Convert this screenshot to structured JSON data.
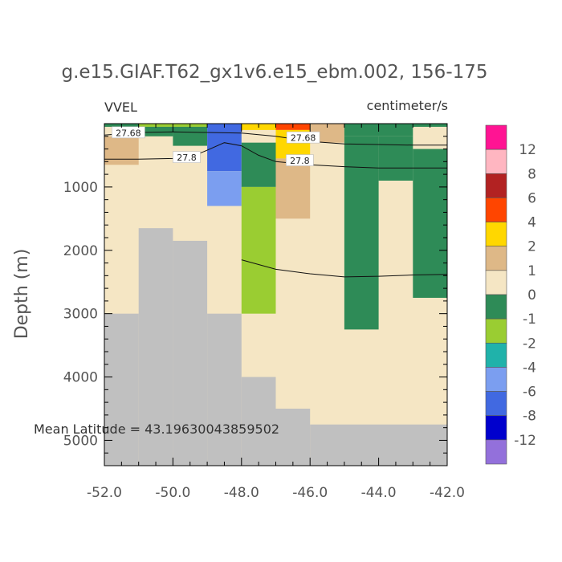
{
  "chart_data": {
    "type": "heatmap",
    "title": "g.e15.GIAF.T62_gx1v6.e15_ebm.002, 156-175",
    "variable": "VVEL",
    "units": "centimeter/s",
    "ylabel": "Depth (m)",
    "xlabel": "",
    "annotation": "Mean Latitude = 43.19630043859502",
    "xlim": [
      -52.0,
      -42.0
    ],
    "ylim": [
      0,
      5400
    ],
    "y_inverted": true,
    "x_ticks": [
      "-52.0",
      "-50.0",
      "-48.0",
      "-46.0",
      "-44.0",
      "-42.0"
    ],
    "x_tick_values": [
      -52,
      -50,
      -48,
      -46,
      -44,
      -42
    ],
    "y_ticks": [
      "1000",
      "2000",
      "3000",
      "4000",
      "5000"
    ],
    "y_tick_values": [
      1000,
      2000,
      3000,
      4000,
      5000
    ],
    "colorbar": {
      "labels": [
        "12",
        "8",
        "6",
        "4",
        "2",
        "1",
        "0",
        "-1",
        "-2",
        "-4",
        "-6",
        "-8",
        "-12"
      ],
      "colors": [
        "#ff1493",
        "#ffb6c1",
        "#b22222",
        "#ff4500",
        "#ffd700",
        "#deb887",
        "#f5e6c4",
        "#2e8b57",
        "#9acd32",
        "#20b2aa",
        "#7b9ef0",
        "#4169e1",
        "#0000cd",
        "#9370db"
      ]
    },
    "background_color": "#f5e6c4",
    "land_color": "#c0c0c0",
    "cells": [
      {
        "x0": -52.0,
        "x1": -51.0,
        "y0": 0,
        "y1": 50,
        "c": "#2e8b57"
      },
      {
        "x0": -51.0,
        "x1": -49.0,
        "y0": 0,
        "y1": 50,
        "c": "#9acd32"
      },
      {
        "x0": -52.0,
        "x1": -51.0,
        "y0": 200,
        "y1": 650,
        "c": "#deb887"
      },
      {
        "x0": -51.0,
        "x1": -50.0,
        "y0": 50,
        "y1": 200,
        "c": "#2e8b57"
      },
      {
        "x0": -50.0,
        "x1": -49.0,
        "y0": 50,
        "y1": 350,
        "c": "#2e8b57"
      },
      {
        "x0": -49.0,
        "x1": -48.0,
        "y0": 0,
        "y1": 750,
        "c": "#4169e1"
      },
      {
        "x0": -49.0,
        "x1": -48.0,
        "y0": 750,
        "y1": 1300,
        "c": "#7b9ef0"
      },
      {
        "x0": -48.0,
        "x1": -47.0,
        "y0": 0,
        "y1": 100,
        "c": "#ffd700"
      },
      {
        "x0": -48.0,
        "x1": -47.0,
        "y0": 300,
        "y1": 1000,
        "c": "#2e8b57"
      },
      {
        "x0": -48.0,
        "x1": -47.0,
        "y0": 1000,
        "y1": 3000,
        "c": "#9acd32"
      },
      {
        "x0": -47.0,
        "x1": -46.0,
        "y0": 0,
        "y1": 100,
        "c": "#ff4500"
      },
      {
        "x0": -47.0,
        "x1": -46.0,
        "y0": 100,
        "y1": 550,
        "c": "#ffd700"
      },
      {
        "x0": -47.0,
        "x1": -46.0,
        "y0": 550,
        "y1": 1500,
        "c": "#deb887"
      },
      {
        "x0": -46.0,
        "x1": -45.0,
        "y0": 0,
        "y1": 300,
        "c": "#deb887"
      },
      {
        "x0": -45.0,
        "x1": -43.0,
        "y0": 0,
        "y1": 200,
        "c": "#2e8b57"
      },
      {
        "x0": -45.0,
        "x1": -44.0,
        "y0": 200,
        "y1": 3250,
        "c": "#2e8b57"
      },
      {
        "x0": -44.0,
        "x1": -43.0,
        "y0": 200,
        "y1": 900,
        "c": "#2e8b57"
      },
      {
        "x0": -43.0,
        "x1": -42.0,
        "y0": 0,
        "y1": 50,
        "c": "#2e8b57"
      },
      {
        "x0": -43.0,
        "x1": -42.0,
        "y0": 400,
        "y1": 2750,
        "c": "#2e8b57"
      }
    ],
    "land": [
      {
        "x0": -52.0,
        "x1": -51.0,
        "y0": 3000,
        "y1": 5400
      },
      {
        "x0": -51.0,
        "x1": -50.0,
        "y0": 1650,
        "y1": 5400
      },
      {
        "x0": -50.0,
        "x1": -49.0,
        "y0": 1850,
        "y1": 5400
      },
      {
        "x0": -49.0,
        "x1": -48.0,
        "y0": 3000,
        "y1": 5400
      },
      {
        "x0": -48.0,
        "x1": -47.0,
        "y0": 4000,
        "y1": 5400
      },
      {
        "x0": -47.0,
        "x1": -46.0,
        "y0": 4500,
        "y1": 5400
      },
      {
        "x0": -46.0,
        "x1": -42.0,
        "y0": 4750,
        "y1": 5400
      }
    ],
    "contours": [
      {
        "level": "27.68",
        "points": [
          [
            -52.0,
            180
          ],
          [
            -51.5,
            160
          ],
          [
            -51.0,
            140
          ],
          [
            -50.0,
            130
          ],
          [
            -49.0,
            140
          ],
          [
            -48.0,
            150
          ],
          [
            -47.0,
            200
          ],
          [
            -46.0,
            280
          ],
          [
            -45.0,
            320
          ],
          [
            -44.0,
            330
          ],
          [
            -43.0,
            340
          ],
          [
            -42.0,
            340
          ]
        ],
        "label_at": [
          -51.3,
          150
        ]
      },
      {
        "level": "27.8",
        "points": [
          [
            -52.0,
            560
          ],
          [
            -51.0,
            560
          ],
          [
            -50.0,
            550
          ],
          [
            -49.5,
            530
          ],
          [
            -49.0,
            420
          ],
          [
            -48.5,
            300
          ],
          [
            -48.0,
            350
          ],
          [
            -47.5,
            500
          ],
          [
            -47.0,
            600
          ],
          [
            -46.0,
            650
          ],
          [
            -45.0,
            680
          ],
          [
            -44.0,
            700
          ],
          [
            -43.0,
            700
          ],
          [
            -42.0,
            700
          ]
        ],
        "label_at": [
          -49.6,
          540
        ]
      },
      {
        "level": "",
        "points": [
          [
            -48.0,
            2150
          ],
          [
            -47.0,
            2300
          ],
          [
            -46.0,
            2370
          ],
          [
            -45.0,
            2420
          ],
          [
            -44.0,
            2410
          ],
          [
            -43.0,
            2390
          ],
          [
            -42.0,
            2380
          ]
        ]
      }
    ],
    "contour_labels_extra": [
      {
        "text": "27.68",
        "at": [
          -46.2,
          230
        ]
      },
      {
        "text": "27.8",
        "at": [
          -46.3,
          590
        ]
      }
    ]
  }
}
